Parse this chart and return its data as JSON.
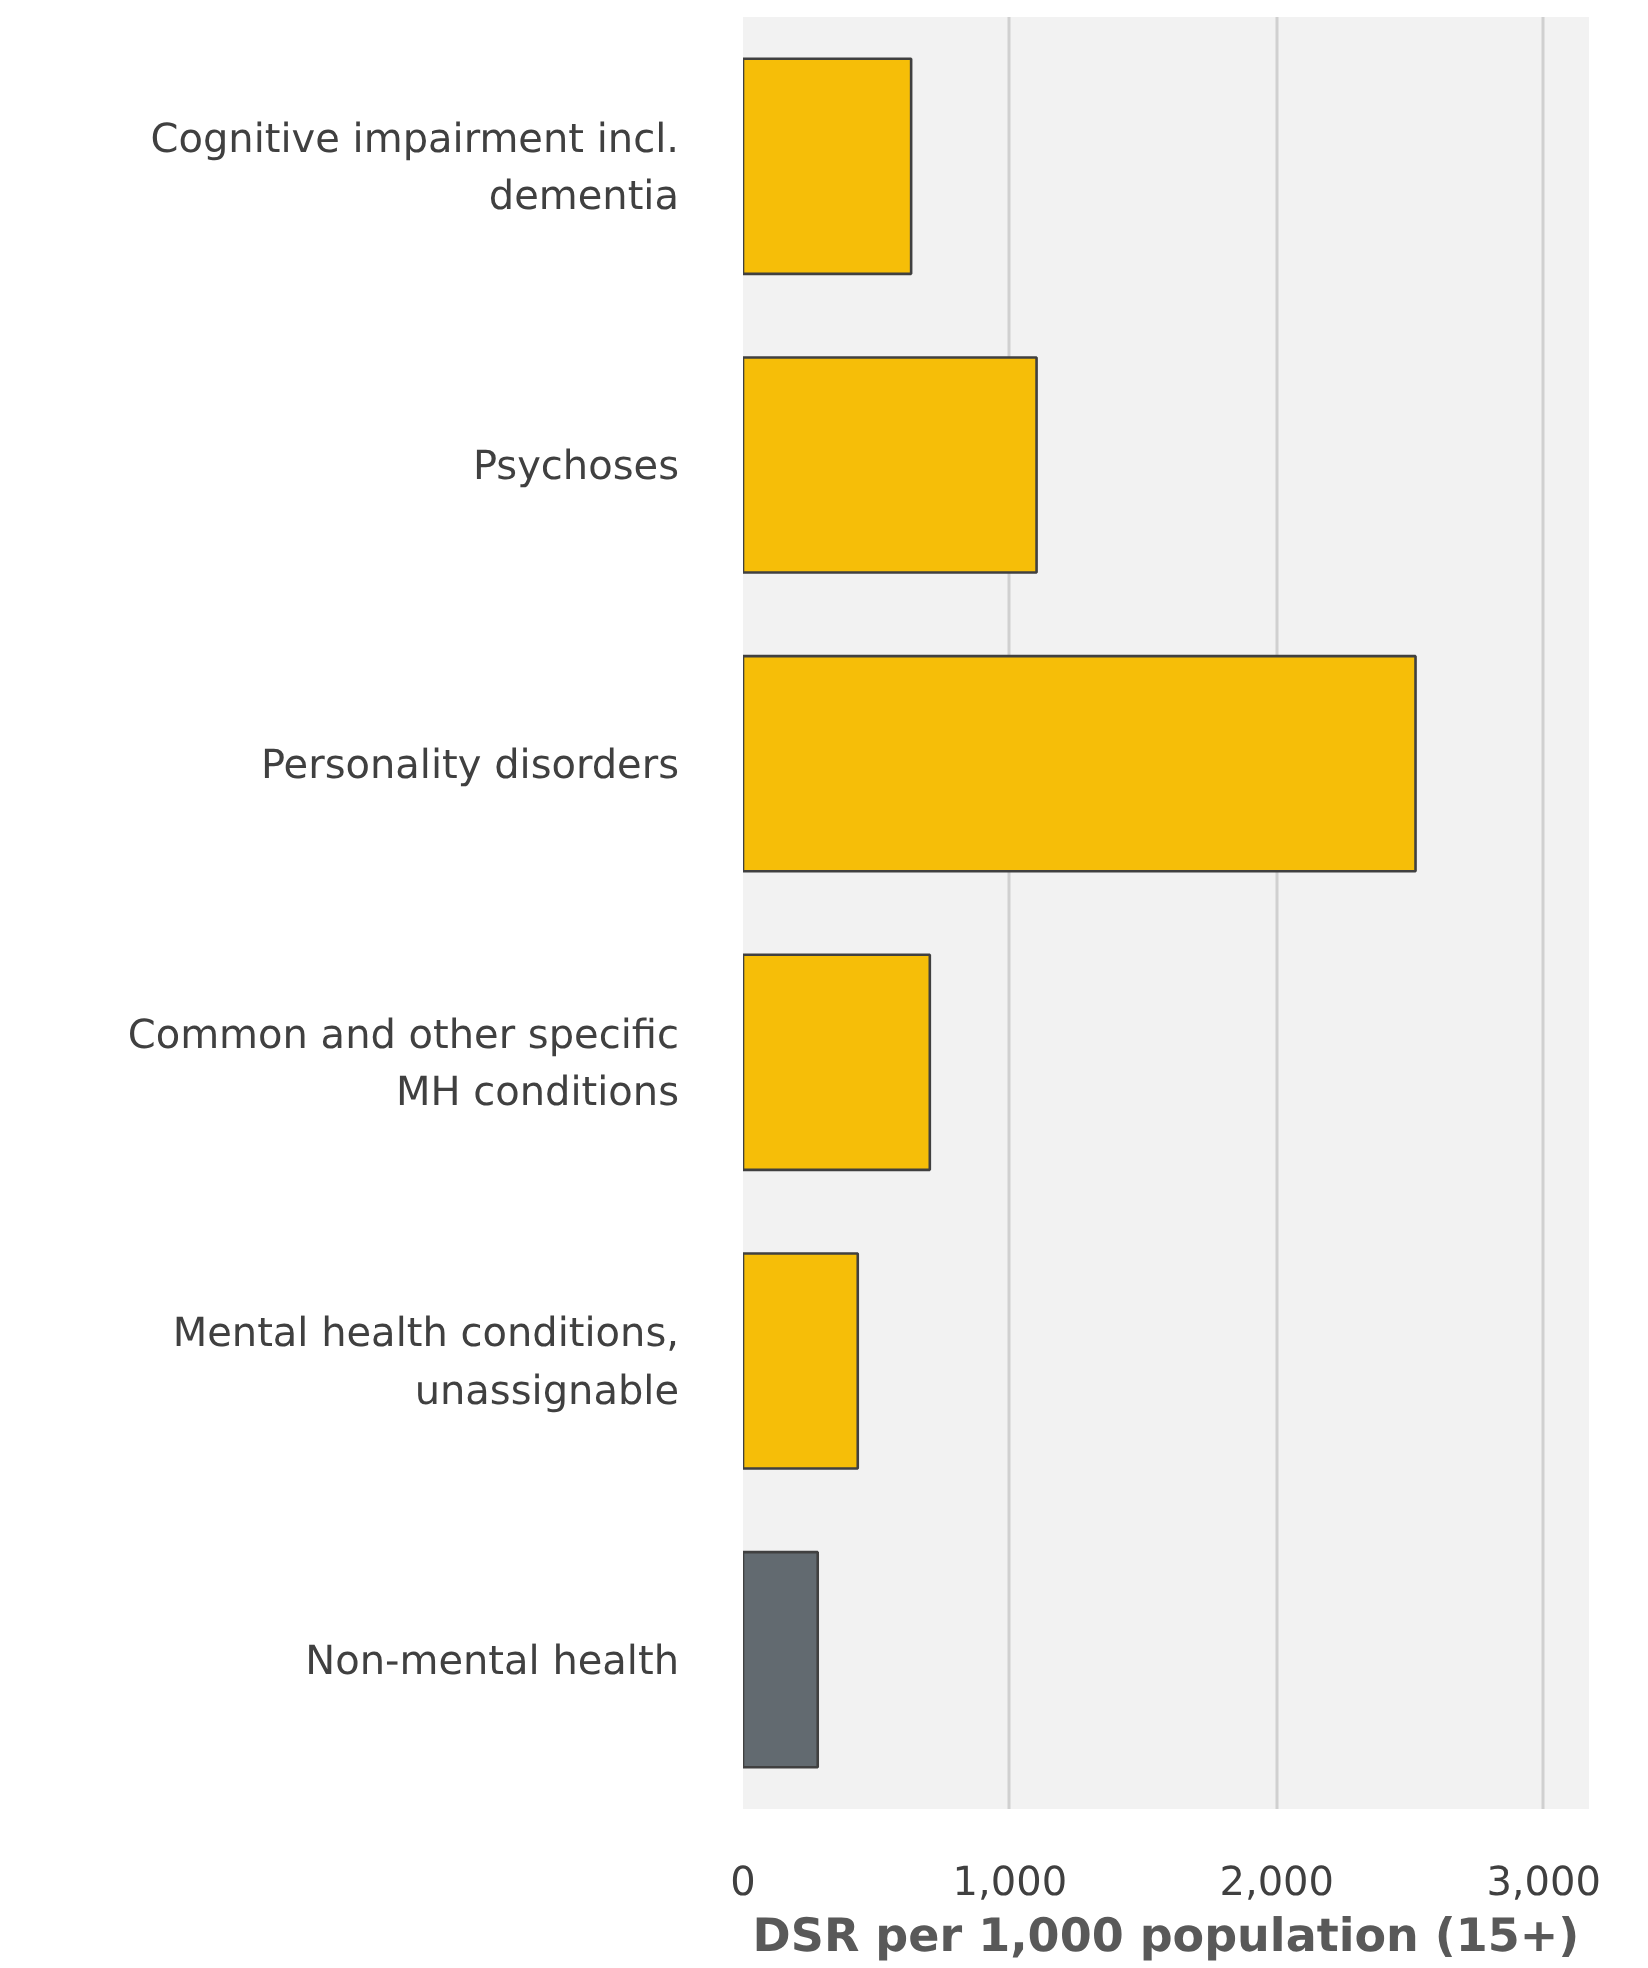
{
  "chart_data": {
    "type": "bar",
    "orientation": "horizontal",
    "xlabel": "DSR per 1,000 population (15+)",
    "categories": [
      "Cognitive impairment incl. dementia",
      "Psychoses",
      "Personality disorders",
      "Common and other specific MH conditions",
      "Mental health conditions, unassignable",
      "Non-mental health"
    ],
    "values": [
      630,
      1100,
      2520,
      700,
      430,
      280
    ],
    "colors": [
      "#f6be08",
      "#f6be08",
      "#f6be08",
      "#f6be08",
      "#f6be08",
      "#626a70"
    ],
    "xlim": [
      0,
      3170
    ],
    "xticks": [
      0,
      {
        "value": 1000,
        "label": "1,000"
      },
      {
        "value": 2000,
        "label": "2,000"
      },
      {
        "value": 3000,
        "label": "3,000"
      }
    ],
    "grid": "x"
  }
}
